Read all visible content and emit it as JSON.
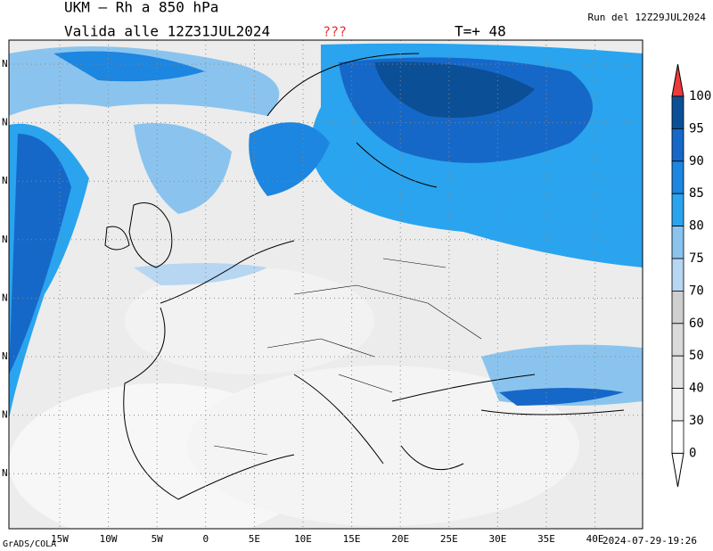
{
  "header": {
    "title": "UKM – Rh a 850 hPa",
    "valid": "Valida alle 12Z31JUL2024",
    "flag": "???",
    "step": "T=+ 48",
    "run": "Run del 12Z29JUL2024"
  },
  "map": {
    "lon_labels": [
      "15W",
      "10W",
      "5W",
      "0",
      "5E",
      "10E",
      "15E",
      "20E",
      "25E",
      "30E",
      "35E",
      "40E"
    ],
    "lat_labels": [
      "N",
      "N",
      "N",
      "N",
      "N",
      "N",
      "N",
      "N"
    ]
  },
  "colorbar": {
    "labels": [
      "100",
      "95",
      "90",
      "85",
      "80",
      "75",
      "70",
      "60",
      "50",
      "40",
      "30",
      "0"
    ],
    "colors": [
      "#0b4f96",
      "#1668c8",
      "#1c86e0",
      "#2aa4ee",
      "#8ac4ee",
      "#b6d6f2",
      "#cfcfcf",
      "#dadada",
      "#e4e4e4",
      "#efefef",
      "#ffffff"
    ],
    "top_color": "#ee3a3a"
  },
  "footer": {
    "credit": "GrADS/COLA",
    "timestamp": "2024-07-29-19:26"
  }
}
